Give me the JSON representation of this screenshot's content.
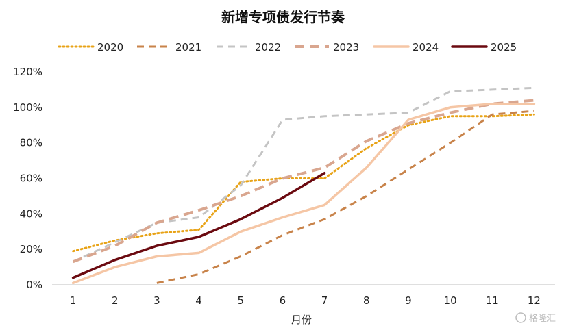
{
  "chart_data": {
    "type": "line",
    "title": "新增专项债发行节奏",
    "xlabel": "月份",
    "ylabel": "",
    "categories": [
      "1",
      "2",
      "3",
      "4",
      "5",
      "6",
      "7",
      "8",
      "9",
      "10",
      "11",
      "12"
    ],
    "ylim": [
      0,
      120
    ],
    "yticks": [
      0,
      20,
      40,
      60,
      80,
      100,
      120
    ],
    "ytick_labels": [
      "0%",
      "20%",
      "40%",
      "60%",
      "80%",
      "100%",
      "120%"
    ],
    "grid": false,
    "legend_position": "top",
    "series": [
      {
        "name": "2020",
        "color": "#E8A317",
        "style": "dotted",
        "values": [
          19,
          25,
          29,
          31,
          58,
          60,
          60,
          77,
          90,
          95,
          95,
          96
        ]
      },
      {
        "name": "2021",
        "color": "#C8834A",
        "style": "dashed",
        "values": [
          null,
          null,
          1,
          6,
          16,
          28,
          37,
          50,
          65,
          80,
          96,
          98
        ]
      },
      {
        "name": "2022",
        "color": "#C4C4C4",
        "style": "dashed",
        "values": [
          13,
          24,
          35,
          38,
          56,
          93,
          95,
          96,
          97,
          109,
          110,
          111
        ]
      },
      {
        "name": "2023",
        "color": "#D9A68F",
        "style": "dashed-thick",
        "values": [
          13,
          22,
          35,
          42,
          50,
          60,
          66,
          81,
          91,
          97,
          102,
          104
        ]
      },
      {
        "name": "2024",
        "color": "#F5C6A5",
        "style": "solid",
        "values": [
          1,
          10,
          16,
          18,
          30,
          38,
          45,
          66,
          93,
          100,
          102,
          102
        ]
      },
      {
        "name": "2025",
        "color": "#6B0A10",
        "style": "solid-dark",
        "values": [
          4,
          14,
          22,
          27,
          37,
          49,
          63,
          null,
          null,
          null,
          null,
          null
        ]
      }
    ]
  },
  "watermark": "格隆汇"
}
